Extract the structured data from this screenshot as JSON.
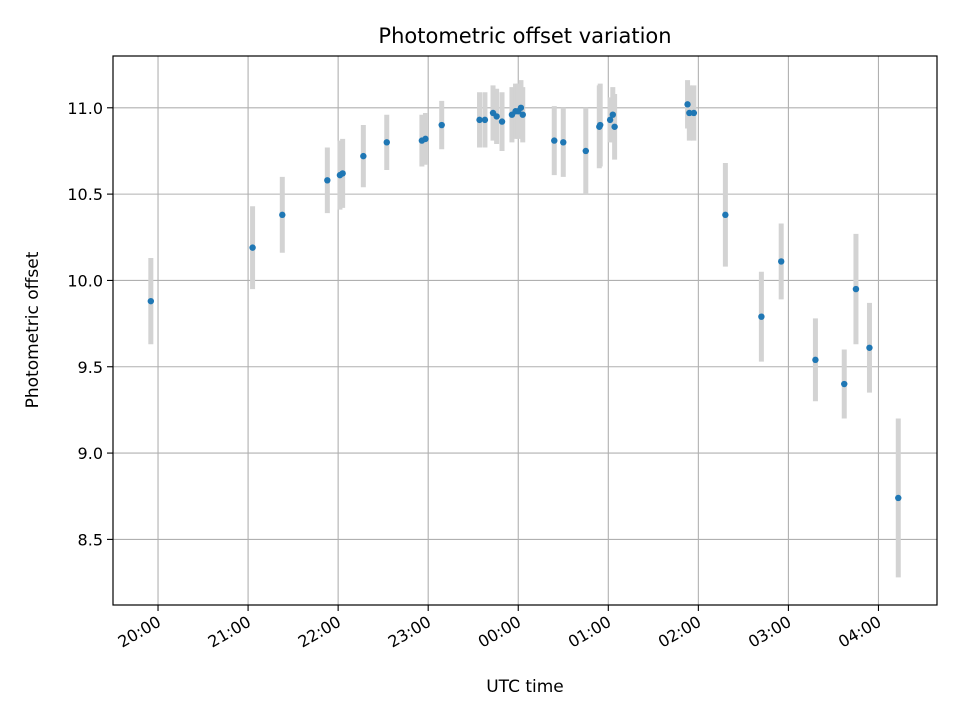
{
  "chart_data": {
    "type": "scatter",
    "title": "Photometric offset variation",
    "xlabel": "UTC time",
    "ylabel": "Photometric offset",
    "xlim": [
      19.5,
      28.65
    ],
    "ylim": [
      8.12,
      11.3
    ],
    "grid": true,
    "x_ticks": [
      20,
      21,
      22,
      23,
      24,
      25,
      26,
      27,
      28
    ],
    "x_tick_labels": [
      "20:00",
      "21:00",
      "22:00",
      "23:00",
      "00:00",
      "01:00",
      "02:00",
      "03:00",
      "04:00"
    ],
    "y_ticks": [
      8.5,
      9.0,
      9.5,
      10.0,
      10.5,
      11.0
    ],
    "y_tick_labels": [
      "8.5",
      "9.0",
      "9.5",
      "10.0",
      "10.5",
      "11.0"
    ],
    "colors": {
      "point": "#1f77b4",
      "errorbar": "#d3d3d3",
      "grid": "#b0b0b0"
    },
    "series": [
      {
        "x": [
          19.92,
          21.05,
          21.38,
          21.88,
          22.02,
          22.05,
          22.28,
          22.54,
          22.93,
          22.97,
          23.15,
          23.57,
          23.63,
          23.72,
          23.76,
          23.82,
          23.93,
          23.97,
          24.0,
          24.03,
          24.05,
          24.4,
          24.5,
          24.75,
          24.9,
          24.91,
          25.02,
          25.05,
          25.07,
          25.88,
          25.9,
          25.95,
          26.3,
          26.7,
          26.92,
          27.3,
          27.62,
          27.75,
          27.9,
          28.22
        ],
        "y": [
          9.88,
          10.19,
          10.38,
          10.58,
          10.61,
          10.62,
          10.72,
          10.8,
          10.81,
          10.82,
          10.9,
          10.93,
          10.93,
          10.97,
          10.95,
          10.92,
          10.96,
          10.98,
          10.98,
          11.0,
          10.96,
          10.81,
          10.8,
          10.75,
          10.89,
          10.9,
          10.93,
          10.96,
          10.89,
          11.02,
          10.97,
          10.97,
          10.38,
          9.79,
          10.11,
          9.54,
          9.4,
          9.95,
          9.61,
          8.74
        ],
        "yerr": [
          0.25,
          0.24,
          0.22,
          0.19,
          0.2,
          0.2,
          0.18,
          0.16,
          0.15,
          0.15,
          0.14,
          0.16,
          0.16,
          0.16,
          0.16,
          0.17,
          0.16,
          0.16,
          0.16,
          0.16,
          0.16,
          0.2,
          0.2,
          0.25,
          0.24,
          0.24,
          0.13,
          0.16,
          0.19,
          0.14,
          0.16,
          0.16,
          0.3,
          0.26,
          0.22,
          0.24,
          0.2,
          0.32,
          0.26,
          0.46
        ]
      }
    ]
  }
}
